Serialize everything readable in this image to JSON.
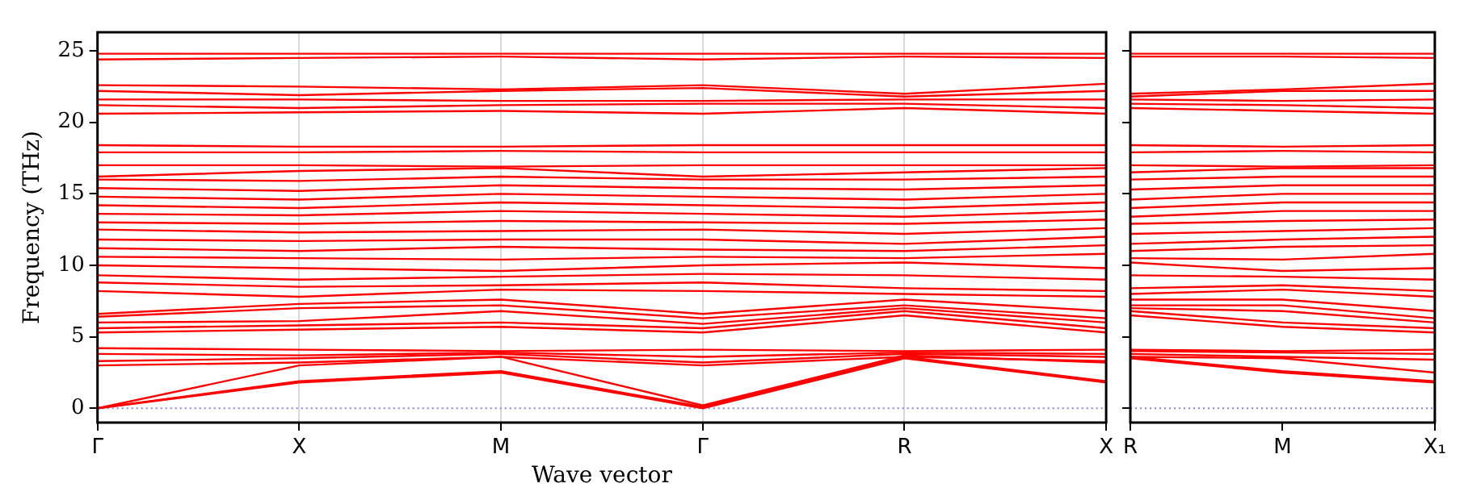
{
  "chart_data": [
    {
      "type": "line",
      "xlabel": "Wave vector",
      "ylabel": "Frequency (THz)",
      "color": "#ff0000",
      "marker": "none",
      "line_style": "solid",
      "grid": "x",
      "legend": false,
      "categories": [
        "Γ",
        "X",
        "M",
        "Γ",
        "R",
        "X"
      ],
      "ylim": [
        -1,
        26.3
      ],
      "yticks": [
        0,
        5,
        10,
        15,
        20,
        25
      ],
      "ref_lines": [
        {
          "axis": "y",
          "value": 0,
          "color": "#8080ff",
          "line_style": "dotted"
        }
      ],
      "series": [
        {
          "values": [
            0,
            1.8,
            2.5,
            0,
            3.5,
            1.8
          ]
        },
        {
          "values": [
            0,
            1.9,
            2.6,
            0.1,
            3.6,
            1.9
          ]
        },
        {
          "values": [
            0,
            3.0,
            3.6,
            0.2,
            3.7,
            3.2
          ]
        },
        {
          "values": [
            3.0,
            3.2,
            3.6,
            3.0,
            3.6,
            3.3
          ]
        },
        {
          "values": [
            3.3,
            3.5,
            3.8,
            3.2,
            3.8,
            3.6
          ]
        },
        {
          "values": [
            3.8,
            3.7,
            3.9,
            3.6,
            3.9,
            3.8
          ]
        },
        {
          "values": [
            4.2,
            4.1,
            4.0,
            4.1,
            4.0,
            4.1
          ]
        },
        {
          "values": [
            5.3,
            5.5,
            5.7,
            5.3,
            6.5,
            5.3
          ]
        },
        {
          "values": [
            5.6,
            5.8,
            6.0,
            5.6,
            6.8,
            5.6
          ]
        },
        {
          "values": [
            6.0,
            6.1,
            6.8,
            5.9,
            7.0,
            6.0
          ]
        },
        {
          "values": [
            6.4,
            7.0,
            7.2,
            6.3,
            7.2,
            6.3
          ]
        },
        {
          "values": [
            6.6,
            7.3,
            7.6,
            6.6,
            7.6,
            6.8
          ]
        },
        {
          "values": [
            8.2,
            7.8,
            8.3,
            8.2,
            8.0,
            7.8
          ]
        },
        {
          "values": [
            8.8,
            8.5,
            8.6,
            8.8,
            8.4,
            8.2
          ]
        },
        {
          "values": [
            9.3,
            9.0,
            9.2,
            9.4,
            9.3,
            9.0
          ]
        },
        {
          "values": [
            10.0,
            9.8,
            9.6,
            10.0,
            10.2,
            9.8
          ]
        },
        {
          "values": [
            10.6,
            10.5,
            10.4,
            10.6,
            10.5,
            10.8
          ]
        },
        {
          "values": [
            11.2,
            11.0,
            11.3,
            11.1,
            11.0,
            11.4
          ]
        },
        {
          "values": [
            11.8,
            11.7,
            11.8,
            11.8,
            11.5,
            12.0
          ]
        },
        {
          "values": [
            12.5,
            12.3,
            12.4,
            12.5,
            12.2,
            12.6
          ]
        },
        {
          "values": [
            13.0,
            12.9,
            13.1,
            13.0,
            12.9,
            13.2
          ]
        },
        {
          "values": [
            13.6,
            13.5,
            13.8,
            13.6,
            13.4,
            13.8
          ]
        },
        {
          "values": [
            14.2,
            14.0,
            14.4,
            14.2,
            14.0,
            14.4
          ]
        },
        {
          "values": [
            14.8,
            14.6,
            15.0,
            14.8,
            14.6,
            15.0
          ]
        },
        {
          "values": [
            15.4,
            15.2,
            15.6,
            15.4,
            15.3,
            15.6
          ]
        },
        {
          "values": [
            16.0,
            15.9,
            16.2,
            16.0,
            16.0,
            16.2
          ]
        },
        {
          "values": [
            16.2,
            16.6,
            16.8,
            16.2,
            16.5,
            16.8
          ]
        },
        {
          "values": [
            17.0,
            17.0,
            16.9,
            17.0,
            17.0,
            17.0
          ]
        },
        {
          "values": [
            17.9,
            17.9,
            18.0,
            17.9,
            17.9,
            17.9
          ]
        },
        {
          "values": [
            18.4,
            18.3,
            18.3,
            18.4,
            18.4,
            18.4
          ]
        },
        {
          "values": [
            20.6,
            20.7,
            20.8,
            20.6,
            21.0,
            20.6
          ]
        },
        {
          "values": [
            21.2,
            21.0,
            21.2,
            21.3,
            21.3,
            21.0
          ]
        },
        {
          "values": [
            21.6,
            21.6,
            21.5,
            21.5,
            21.6,
            21.6
          ]
        },
        {
          "values": [
            22.2,
            21.9,
            22.2,
            22.4,
            21.8,
            22.2
          ]
        },
        {
          "values": [
            22.6,
            22.5,
            22.3,
            22.6,
            22.0,
            22.7
          ]
        },
        {
          "values": [
            24.4,
            24.5,
            24.6,
            24.4,
            24.6,
            24.5
          ]
        },
        {
          "values": [
            24.8,
            24.8,
            24.8,
            24.8,
            24.8,
            24.8
          ]
        }
      ]
    },
    {
      "type": "line",
      "color": "#ff0000",
      "marker": "none",
      "line_style": "solid",
      "legend": false,
      "tick_labels": "x",
      "categories": [
        "R",
        "M",
        "X₁"
      ],
      "ylim": [
        -1,
        26.3
      ],
      "yticks": [
        {
          "value": 0,
          "label": null
        },
        {
          "value": 5,
          "label": null
        },
        {
          "value": 10,
          "label": null
        },
        {
          "value": 15,
          "label": null
        },
        {
          "value": 20,
          "label": null
        },
        {
          "value": 25,
          "label": null
        }
      ],
      "ref_lines": [
        {
          "axis": "y",
          "value": 0,
          "color": "#8080ff",
          "line_style": "dotted"
        }
      ],
      "series": [
        {
          "values": [
            3.5,
            2.5,
            1.8
          ]
        },
        {
          "values": [
            3.6,
            2.6,
            1.9
          ]
        },
        {
          "values": [
            3.6,
            3.5,
            2.5
          ]
        },
        {
          "values": [
            3.8,
            3.6,
            3.4
          ]
        },
        {
          "values": [
            4.0,
            3.9,
            3.8
          ]
        },
        {
          "values": [
            4.1,
            4.0,
            4.1
          ]
        },
        {
          "values": [
            6.5,
            5.7,
            5.3
          ]
        },
        {
          "values": [
            6.8,
            6.0,
            5.6
          ]
        },
        {
          "values": [
            7.0,
            6.8,
            6.0
          ]
        },
        {
          "values": [
            7.2,
            7.2,
            6.3
          ]
        },
        {
          "values": [
            7.6,
            7.6,
            6.8
          ]
        },
        {
          "values": [
            8.0,
            8.3,
            7.8
          ]
        },
        {
          "values": [
            8.4,
            8.6,
            8.2
          ]
        },
        {
          "values": [
            9.3,
            9.2,
            9.0
          ]
        },
        {
          "values": [
            10.2,
            9.6,
            9.8
          ]
        },
        {
          "values": [
            10.5,
            10.4,
            10.8
          ]
        },
        {
          "values": [
            11.0,
            11.3,
            11.4
          ]
        },
        {
          "values": [
            11.5,
            11.8,
            12.0
          ]
        },
        {
          "values": [
            12.2,
            12.4,
            12.6
          ]
        },
        {
          "values": [
            12.9,
            13.1,
            13.2
          ]
        },
        {
          "values": [
            13.4,
            13.8,
            13.8
          ]
        },
        {
          "values": [
            14.0,
            14.4,
            14.4
          ]
        },
        {
          "values": [
            14.6,
            15.0,
            15.0
          ]
        },
        {
          "values": [
            15.3,
            15.6,
            15.6
          ]
        },
        {
          "values": [
            16.0,
            16.2,
            16.2
          ]
        },
        {
          "values": [
            16.5,
            16.8,
            16.8
          ]
        },
        {
          "values": [
            17.0,
            16.9,
            17.0
          ]
        },
        {
          "values": [
            17.9,
            18.0,
            17.9
          ]
        },
        {
          "values": [
            18.4,
            18.3,
            18.4
          ]
        },
        {
          "values": [
            21.0,
            20.8,
            20.6
          ]
        },
        {
          "values": [
            21.3,
            21.2,
            21.0
          ]
        },
        {
          "values": [
            21.6,
            21.5,
            21.6
          ]
        },
        {
          "values": [
            21.8,
            22.2,
            22.2
          ]
        },
        {
          "values": [
            22.0,
            22.3,
            22.7
          ]
        },
        {
          "values": [
            24.6,
            24.6,
            24.5
          ]
        },
        {
          "values": [
            24.8,
            24.8,
            24.8
          ]
        }
      ]
    }
  ]
}
